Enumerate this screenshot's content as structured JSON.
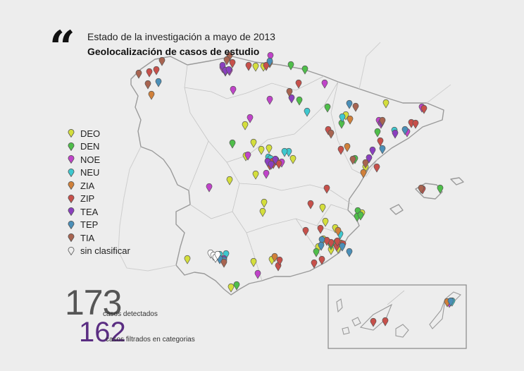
{
  "header": {
    "title": "Estado de la investigación a mayo de 2013",
    "subtitle": "Geolocalización  de casos de estudio"
  },
  "legend": [
    {
      "code": "DEO",
      "color": "#d4de3c"
    },
    {
      "code": "DEN",
      "color": "#4fbe4a"
    },
    {
      "code": "NOE",
      "color": "#c043c9"
    },
    {
      "code": "NEU",
      "color": "#3ec8cf"
    },
    {
      "code": "ZIA",
      "color": "#d0803a"
    },
    {
      "code": "ZIP",
      "color": "#c7504a"
    },
    {
      "code": "TEA",
      "color": "#8a3fbf"
    },
    {
      "code": "TEP",
      "color": "#4a8fb8"
    },
    {
      "code": "TIA",
      "color": "#a86450"
    },
    {
      "code": "sin clasificar",
      "color": "none"
    }
  ],
  "stats": {
    "detected_count": "173",
    "detected_label": "casos detectados",
    "filtered_count": "162",
    "filtered_label": "casos filtrados en categorias"
  },
  "markers": {
    "DEO": [
      [
        374,
        97
      ],
      [
        363,
        97
      ],
      [
        348,
        180
      ],
      [
        371,
        215
      ],
      [
        382,
        213
      ],
      [
        360,
        205
      ],
      [
        349,
        224
      ],
      [
        363,
        250
      ],
      [
        375,
        290
      ],
      [
        373,
        303
      ],
      [
        416,
        228
      ],
      [
        326,
        258
      ],
      [
        458,
        297
      ],
      [
        462,
        317
      ],
      [
        476,
        326
      ],
      [
        459,
        342
      ],
      [
        452,
        353
      ],
      [
        470,
        357
      ],
      [
        480,
        355
      ],
      [
        266,
        370
      ],
      [
        360,
        374
      ],
      [
        386,
        371
      ],
      [
        328,
        410
      ],
      [
        548,
        149
      ],
      [
        491,
        166
      ],
      [
        519,
        240
      ],
      [
        514,
        305
      ]
    ],
    "DEN": [
      [
        413,
        95
      ],
      [
        433,
        101
      ],
      [
        425,
        145
      ],
      [
        465,
        155
      ],
      [
        504,
        228
      ],
      [
        508,
        302
      ],
      [
        507,
        310
      ],
      [
        449,
        360
      ],
      [
        512,
        308
      ],
      [
        536,
        190
      ],
      [
        625,
        270
      ],
      [
        336,
        407
      ],
      [
        330,
        206
      ],
      [
        485,
        178
      ],
      [
        470,
        350
      ],
      [
        478,
        346
      ]
    ],
    "NOE": [
      [
        316,
        99
      ],
      [
        320,
        104
      ],
      [
        326,
        103
      ],
      [
        331,
        130
      ],
      [
        383,
        144
      ],
      [
        461,
        121
      ],
      [
        355,
        170
      ],
      [
        352,
        223
      ],
      [
        297,
        268
      ],
      [
        599,
        155
      ],
      [
        578,
        190
      ],
      [
        538,
        174
      ],
      [
        541,
        178
      ],
      [
        638,
        432
      ],
      [
        384,
        82
      ],
      [
        366,
        391
      ],
      [
        378,
        249
      ],
      [
        400,
        233
      ]
    ],
    "NEU": [
      [
        436,
        161
      ],
      [
        410,
        218
      ],
      [
        404,
        218
      ],
      [
        381,
        226
      ],
      [
        384,
        228
      ],
      [
        486,
        169
      ],
      [
        483,
        335
      ],
      [
        321,
        363
      ],
      [
        312,
        364
      ],
      [
        560,
        188
      ],
      [
        642,
        430
      ]
    ],
    "ZIA": [
      [
        383,
        92
      ],
      [
        215,
        137
      ],
      [
        493,
        211
      ],
      [
        497,
        172
      ],
      [
        516,
        248
      ],
      [
        480,
        330
      ],
      [
        390,
        367
      ],
      [
        484,
        348
      ],
      [
        635,
        431
      ]
    ],
    "ZIP": [
      [
        212,
        105
      ],
      [
        222,
        102
      ],
      [
        353,
        96
      ],
      [
        378,
        96
      ],
      [
        330,
        92
      ],
      [
        424,
        121
      ],
      [
        466,
        187
      ],
      [
        484,
        215
      ],
      [
        464,
        270
      ],
      [
        441,
        292
      ],
      [
        434,
        330
      ],
      [
        455,
        327
      ],
      [
        470,
        347
      ],
      [
        487,
        349
      ],
      [
        388,
        235
      ],
      [
        392,
        230
      ],
      [
        383,
        237
      ],
      [
        387,
        232
      ],
      [
        396,
        235
      ],
      [
        446,
        376
      ],
      [
        395,
        380
      ],
      [
        397,
        372
      ],
      [
        600,
        271
      ],
      [
        530,
        459
      ],
      [
        547,
        458
      ],
      [
        535,
        240
      ],
      [
        540,
        203
      ],
      [
        584,
        177
      ],
      [
        602,
        157
      ],
      [
        590,
        178
      ],
      [
        478,
        352
      ],
      [
        464,
        344
      ],
      [
        457,
        371
      ],
      [
        479,
        345
      ]
    ],
    "TEA": [
      [
        316,
        96
      ],
      [
        320,
        103
      ],
      [
        325,
        102
      ],
      [
        414,
        142
      ],
      [
        380,
        232
      ],
      [
        385,
        236
      ],
      [
        391,
        229
      ],
      [
        542,
        176
      ],
      [
        524,
        227
      ],
      [
        529,
        216
      ],
      [
        561,
        192
      ],
      [
        318,
        370
      ]
    ],
    "TEP": [
      [
        383,
        90
      ],
      [
        225,
        119
      ],
      [
        496,
        150
      ],
      [
        543,
        214
      ],
      [
        575,
        187
      ],
      [
        318,
        372
      ],
      [
        312,
        370
      ],
      [
        496,
        360
      ],
      [
        486,
        352
      ],
      [
        457,
        343
      ],
      [
        456,
        351
      ],
      [
        640,
        430
      ]
    ],
    "TIA": [
      [
        197,
        107
      ],
      [
        230,
        89
      ],
      [
        326,
        82
      ],
      [
        322,
        88
      ],
      [
        411,
        133
      ],
      [
        470,
        192
      ],
      [
        505,
        154
      ],
      [
        501,
        229
      ],
      [
        519,
        234
      ],
      [
        543,
        174
      ],
      [
        598,
        270
      ],
      [
        318,
        375
      ],
      [
        210,
        122
      ]
    ],
    "sin clasificar": [
      [
        299,
        362
      ],
      [
        303,
        365
      ],
      [
        306,
        368
      ],
      [
        309,
        364
      ]
    ]
  }
}
